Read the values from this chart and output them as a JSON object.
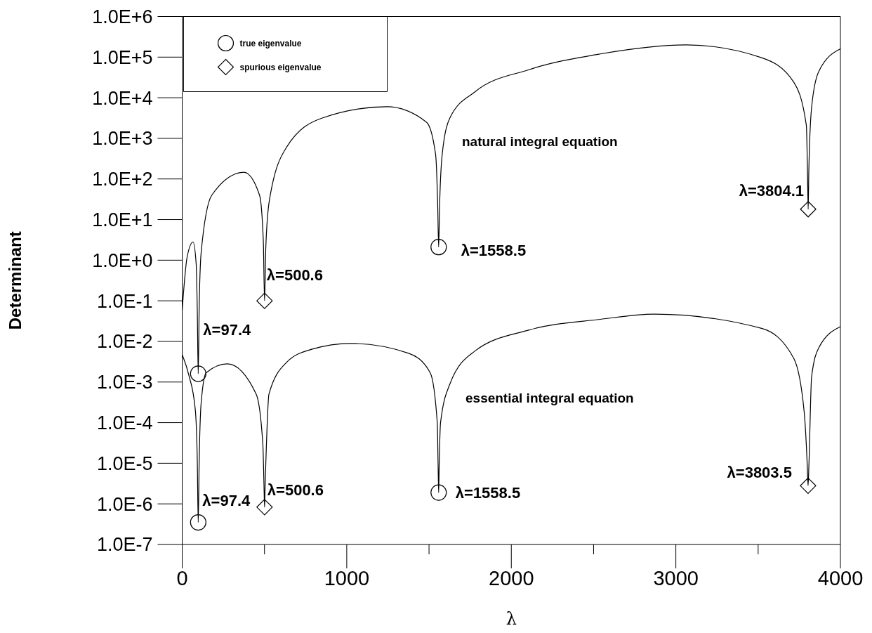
{
  "chart_data": {
    "type": "line",
    "xlabel": "λ",
    "ylabel": "Determinant",
    "log": "y",
    "legend": "top left",
    "grid": false,
    "xlim": [
      0,
      4000
    ],
    "xticks": [
      0,
      {
        "value": 500,
        "label": null
      },
      1000,
      {
        "value": 1500,
        "label": null
      },
      2000,
      {
        "value": 2500,
        "label": null
      },
      3000,
      {
        "value": 3500,
        "label": null
      },
      4000
    ],
    "ylim": [
      1e-07,
      1000000.0
    ],
    "yticks": [
      {
        "value": 1e-07,
        "label": "1.0E-7"
      },
      {
        "value": 1e-06,
        "label": "1.0E-6"
      },
      {
        "value": 1e-05,
        "label": "1.0E-5"
      },
      {
        "value": 0.0001,
        "label": "1.0E-4"
      },
      {
        "value": 0.001,
        "label": "1.0E-3"
      },
      {
        "value": 0.01,
        "label": "1.0E-2"
      },
      {
        "value": 0.1,
        "label": "1.0E-1"
      },
      {
        "value": 1,
        "label": "1.0E+0"
      },
      {
        "value": 10,
        "label": "1.0E+1"
      },
      {
        "value": 100,
        "label": "1.0E+2"
      },
      {
        "value": 1000,
        "label": "1.0E+3"
      },
      {
        "value": 10000,
        "label": "1.0E+4"
      },
      {
        "value": 100000,
        "label": "1.0E+5"
      },
      {
        "value": 1000000,
        "label": "1.0E+6"
      }
    ],
    "series": [
      {
        "name": "natural integral equation",
        "color": "#000000",
        "x": [
          0,
          30,
          66,
          85,
          92,
          97.4,
          103,
          115,
          180,
          375,
          470,
          493,
          500.6,
          508,
          530,
          636,
          854,
          1244,
          1485,
          1540,
          1553,
          1558.5,
          1564,
          1580,
          1627,
          1779,
          2106,
          2541,
          3064,
          3521,
          3717,
          3793,
          3800,
          3804.1,
          3808,
          3825,
          3868,
          4000
        ],
        "values": [
          0.06,
          1.2,
          2.8,
          0.8,
          0.05,
          0.0016,
          0.06,
          1.5,
          40,
          147,
          40,
          3,
          0.1,
          2,
          30,
          620,
          3200,
          6000,
          2500,
          400,
          20,
          2.1,
          20,
          400,
          3200,
          14000,
          49000,
          120000,
          200000,
          97000,
          24000,
          2100,
          150,
          18,
          150,
          5800,
          44000,
          160000
        ]
      },
      {
        "name": "essential integral equation",
        "color": "#000000",
        "x": [
          0,
          40,
          80,
          92,
          97.4,
          103,
          115,
          146,
          275,
          450,
          490,
          497,
          500.6,
          504,
          512,
          527,
          636,
          787,
          1026,
          1376,
          1507,
          1550,
          1555,
          1558.5,
          1562,
          1570,
          1627,
          1779,
          2106,
          2541,
          2868,
          3521,
          3717,
          3780,
          3798,
          3803.5,
          3809,
          3825,
          3868,
          4000
        ],
        "values": [
          0.0047,
          0.0015,
          0.0002,
          1e-05,
          3.5e-07,
          1e-05,
          0.0003,
          0.0017,
          0.0028,
          0.0005,
          3e-05,
          3e-06,
          8.3e-07,
          3e-06,
          3e-05,
          0.0005,
          0.0031,
          0.0064,
          0.0089,
          0.0051,
          0.0017,
          0.0001,
          1e-05,
          1.9e-06,
          1e-05,
          0.0001,
          0.0009,
          0.0058,
          0.019,
          0.035,
          0.047,
          0.021,
          0.0038,
          0.00018,
          1e-05,
          2.8e-06,
          1e-05,
          0.00135,
          0.0069,
          0.023
        ]
      },
      {
        "name": "true eigenvalue",
        "type": "scatter",
        "marker": "circle",
        "color": "#000000",
        "x": [
          97.4,
          1558.5,
          97.4,
          1558.5
        ],
        "values": [
          0.0016,
          2.1,
          3.5e-07,
          1.9e-06
        ]
      },
      {
        "name": "spurious eigenvalue",
        "type": "scatter",
        "marker": "diamond",
        "color": "#000000",
        "x": [
          500.6,
          3804.1,
          500.6,
          3803.5
        ],
        "values": [
          0.1,
          18,
          8.3e-07,
          2.8e-06
        ]
      }
    ],
    "annotations": [
      {
        "text": "λ=97.4",
        "x": 97.4,
        "y": 0.0016
      },
      {
        "text": "λ=500.6",
        "x": 500.6,
        "y": 0.1
      },
      {
        "text": "λ=1558.5",
        "x": 1558.5,
        "y": 2.1
      },
      {
        "text": "λ=3804.1",
        "x": 3804.1,
        "y": 18
      },
      {
        "text": "λ=97.4",
        "x": 97.4,
        "y": 3.5e-07
      },
      {
        "text": "λ=500.6",
        "x": 500.6,
        "y": 8.3e-07
      },
      {
        "text": "λ=1558.5",
        "x": 1558.5,
        "y": 1.9e-06
      },
      {
        "text": "λ=3803.5",
        "x": 3803.5,
        "y": 2.8e-06
      }
    ]
  }
}
